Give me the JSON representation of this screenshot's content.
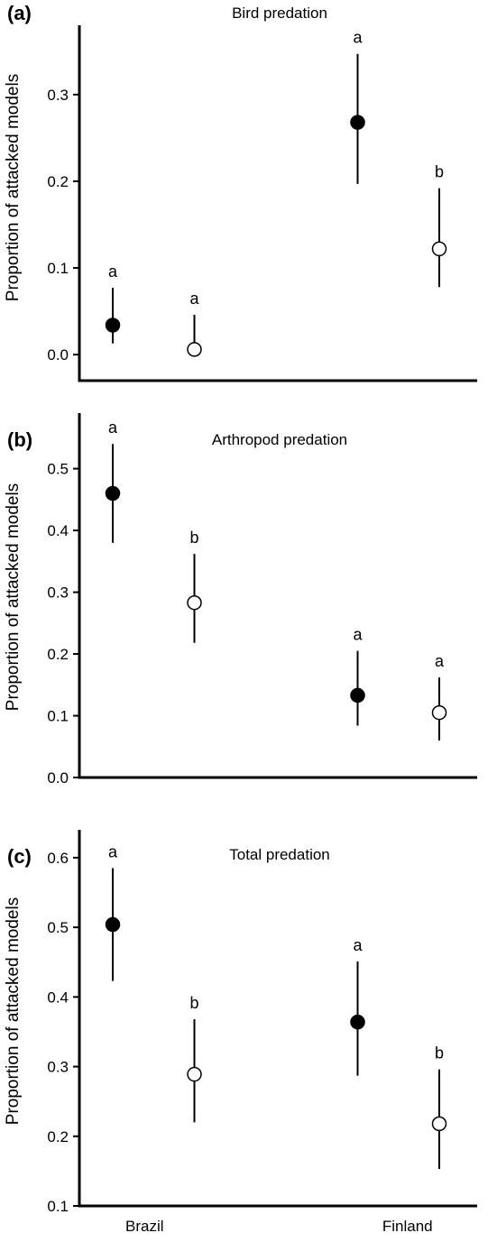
{
  "chart_data": [
    {
      "type": "scatter",
      "panel": "(a)",
      "title": "Bird predation",
      "ylabel": "Proportion of attacked models",
      "ylim": [
        -0.03,
        0.38
      ],
      "yticks": [
        "0.0",
        "0.1",
        "0.2",
        "0.3"
      ],
      "ytick_values": [
        0.0,
        0.1,
        0.2,
        0.3
      ],
      "points": [
        {
          "x": 1,
          "y": 0.034,
          "low": 0.013,
          "high": 0.077,
          "filled": true,
          "sig": "a"
        },
        {
          "x": 2,
          "y": 0.006,
          "low": 0.006,
          "high": 0.046,
          "filled": false,
          "sig": "a"
        },
        {
          "x": 4,
          "y": 0.268,
          "low": 0.197,
          "high": 0.347,
          "filled": true,
          "sig": "a"
        },
        {
          "x": 5,
          "y": 0.122,
          "low": 0.078,
          "high": 0.192,
          "filled": false,
          "sig": "b"
        }
      ]
    },
    {
      "type": "scatter",
      "panel": "(b)",
      "title": "Arthropod predation",
      "ylabel": "Proportion of attacked models",
      "ylim": [
        0.0,
        0.59
      ],
      "yticks": [
        "0.0",
        "0.1",
        "0.2",
        "0.3",
        "0.4",
        "0.5"
      ],
      "ytick_values": [
        0.0,
        0.1,
        0.2,
        0.3,
        0.4,
        0.5
      ],
      "points": [
        {
          "x": 1,
          "y": 0.46,
          "low": 0.38,
          "high": 0.54,
          "filled": true,
          "sig": "a"
        },
        {
          "x": 2,
          "y": 0.283,
          "low": 0.218,
          "high": 0.362,
          "filled": false,
          "sig": "b"
        },
        {
          "x": 4,
          "y": 0.133,
          "low": 0.084,
          "high": 0.205,
          "filled": true,
          "sig": "a"
        },
        {
          "x": 5,
          "y": 0.105,
          "low": 0.06,
          "high": 0.162,
          "filled": false,
          "sig": "a"
        }
      ]
    },
    {
      "type": "scatter",
      "panel": "(c)",
      "title": "Total predation",
      "ylabel": "Proportion of attacked models",
      "ylim": [
        0.1,
        0.64
      ],
      "yticks": [
        "0.1",
        "0.2",
        "0.3",
        "0.4",
        "0.5",
        "0.6"
      ],
      "ytick_values": [
        0.1,
        0.2,
        0.3,
        0.4,
        0.5,
        0.6
      ],
      "categories": [
        "Brazil",
        "Finland"
      ],
      "category_x": [
        1.5,
        4.5
      ],
      "points": [
        {
          "x": 1,
          "y": 0.504,
          "low": 0.423,
          "high": 0.585,
          "filled": true,
          "sig": "a"
        },
        {
          "x": 2,
          "y": 0.289,
          "low": 0.22,
          "high": 0.368,
          "filled": false,
          "sig": "b"
        },
        {
          "x": 4,
          "y": 0.364,
          "low": 0.287,
          "high": 0.451,
          "filled": true,
          "sig": "a"
        },
        {
          "x": 5,
          "y": 0.218,
          "low": 0.153,
          "high": 0.296,
          "filled": false,
          "sig": "b"
        }
      ]
    }
  ]
}
